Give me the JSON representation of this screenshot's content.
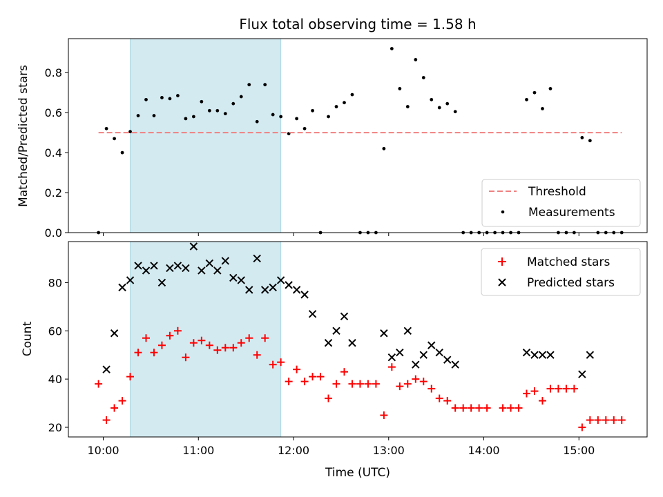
{
  "chart_data": {
    "type": "scatter",
    "title": "Flux total observing time = 1.58 h",
    "x_unit": "Time (UTC)",
    "xlim": [
      "09:38",
      "15:43"
    ],
    "x_ticks": [
      "10:00",
      "11:00",
      "12:00",
      "13:00",
      "14:00",
      "15:00"
    ],
    "shaded_interval": [
      "10:17",
      "11:52"
    ],
    "shaded_color": "#d3eaf1",
    "panels": [
      {
        "ylabel": "Matched/Predicted stars",
        "ylim": [
          0,
          0.97
        ],
        "y_ticks": [
          "0.0",
          "0.2",
          "0.4",
          "0.6",
          "0.8"
        ],
        "legend_placement": "lower-right",
        "threshold": {
          "name": "Threshold",
          "value": 0.5,
          "x_range": [
            "09:57",
            "15:27"
          ],
          "color": "#f08080"
        },
        "series": [
          {
            "name": "Measurements",
            "marker": "dot",
            "color": "#000000",
            "points": [
              [
                "09:57",
                0
              ],
              [
                "10:02",
                0.52
              ],
              [
                "10:07",
                0.47
              ],
              [
                "10:12",
                0.4
              ],
              [
                "10:17",
                0.505
              ],
              [
                "10:22",
                0.585
              ],
              [
                "10:27",
                0.665
              ],
              [
                "10:32",
                0.585
              ],
              [
                "10:37",
                0.675
              ],
              [
                "10:42",
                0.67
              ],
              [
                "10:47",
                0.685
              ],
              [
                "10:52",
                0.57
              ],
              [
                "10:57",
                0.58
              ],
              [
                "11:02",
                0.655
              ],
              [
                "11:07",
                0.61
              ],
              [
                "11:12",
                0.61
              ],
              [
                "11:17",
                0.595
              ],
              [
                "11:22",
                0.645
              ],
              [
                "11:27",
                0.68
              ],
              [
                "11:32",
                0.74
              ],
              [
                "11:37",
                0.555
              ],
              [
                "11:42",
                0.74
              ],
              [
                "11:47",
                0.59
              ],
              [
                "11:52",
                0.58
              ],
              [
                "11:57",
                0.495
              ],
              [
                "12:02",
                0.57
              ],
              [
                "12:07",
                0.52
              ],
              [
                "12:12",
                0.61
              ],
              [
                "12:17",
                0
              ],
              [
                "12:22",
                0.58
              ],
              [
                "12:27",
                0.63
              ],
              [
                "12:32",
                0.65
              ],
              [
                "12:37",
                0.69
              ],
              [
                "12:42",
                0
              ],
              [
                "12:47",
                0
              ],
              [
                "12:52",
                0
              ],
              [
                "12:57",
                0.42
              ],
              [
                "13:02",
                0.92
              ],
              [
                "13:07",
                0.72
              ],
              [
                "13:12",
                0.63
              ],
              [
                "13:17",
                0.865
              ],
              [
                "13:22",
                0.775
              ],
              [
                "13:27",
                0.665
              ],
              [
                "13:32",
                0.625
              ],
              [
                "13:37",
                0.645
              ],
              [
                "13:42",
                0.605
              ],
              [
                "13:47",
                0
              ],
              [
                "13:52",
                0
              ],
              [
                "13:57",
                0
              ],
              [
                "14:02",
                0
              ],
              [
                "14:07",
                0
              ],
              [
                "14:12",
                0
              ],
              [
                "14:17",
                0
              ],
              [
                "14:22",
                0
              ],
              [
                "14:27",
                0.665
              ],
              [
                "14:32",
                0.7
              ],
              [
                "14:37",
                0.62
              ],
              [
                "14:42",
                0.72
              ],
              [
                "14:47",
                0
              ],
              [
                "14:52",
                0
              ],
              [
                "14:57",
                0
              ],
              [
                "15:02",
                0.475
              ],
              [
                "15:07",
                0.46
              ],
              [
                "15:12",
                0
              ],
              [
                "15:17",
                0
              ],
              [
                "15:22",
                0
              ],
              [
                "15:27",
                0
              ]
            ]
          }
        ]
      },
      {
        "ylabel": "Count",
        "xlabel": "Time (UTC)",
        "ylim": [
          16,
          97
        ],
        "y_ticks": [
          "20",
          "40",
          "60",
          "80"
        ],
        "legend_placement": "top-right",
        "series": [
          {
            "name": "Matched stars",
            "marker": "plus",
            "color": "#ff0000",
            "points": [
              [
                "09:57",
                38
              ],
              [
                "10:02",
                23
              ],
              [
                "10:07",
                28
              ],
              [
                "10:12",
                31
              ],
              [
                "10:17",
                41
              ],
              [
                "10:22",
                51
              ],
              [
                "10:27",
                57
              ],
              [
                "10:32",
                51
              ],
              [
                "10:37",
                54
              ],
              [
                "10:42",
                58
              ],
              [
                "10:47",
                60
              ],
              [
                "10:52",
                49
              ],
              [
                "10:57",
                55
              ],
              [
                "11:02",
                56
              ],
              [
                "11:07",
                54
              ],
              [
                "11:12",
                52
              ],
              [
                "11:17",
                53
              ],
              [
                "11:22",
                53
              ],
              [
                "11:27",
                55
              ],
              [
                "11:32",
                57
              ],
              [
                "11:37",
                50
              ],
              [
                "11:42",
                57
              ],
              [
                "11:47",
                46
              ],
              [
                "11:52",
                47
              ],
              [
                "11:57",
                39
              ],
              [
                "12:02",
                44
              ],
              [
                "12:07",
                39
              ],
              [
                "12:12",
                41
              ],
              [
                "12:17",
                41
              ],
              [
                "12:22",
                32
              ],
              [
                "12:27",
                38
              ],
              [
                "12:32",
                43
              ],
              [
                "12:37",
                38
              ],
              [
                "12:42",
                38
              ],
              [
                "12:47",
                38
              ],
              [
                "12:52",
                38
              ],
              [
                "12:57",
                25
              ],
              [
                "13:02",
                45
              ],
              [
                "13:07",
                37
              ],
              [
                "13:12",
                38
              ],
              [
                "13:17",
                40
              ],
              [
                "13:22",
                39
              ],
              [
                "13:27",
                36
              ],
              [
                "13:32",
                32
              ],
              [
                "13:37",
                31
              ],
              [
                "13:42",
                28
              ],
              [
                "13:47",
                28
              ],
              [
                "13:52",
                28
              ],
              [
                "13:57",
                28
              ],
              [
                "14:02",
                28
              ],
              [
                "14:12",
                28
              ],
              [
                "14:17",
                28
              ],
              [
                "14:22",
                28
              ],
              [
                "14:27",
                34
              ],
              [
                "14:32",
                35
              ],
              [
                "14:37",
                31
              ],
              [
                "14:42",
                36
              ],
              [
                "14:47",
                36
              ],
              [
                "14:52",
                36
              ],
              [
                "14:57",
                36
              ],
              [
                "15:02",
                20
              ],
              [
                "15:07",
                23
              ],
              [
                "15:12",
                23
              ],
              [
                "15:17",
                23
              ],
              [
                "15:22",
                23
              ],
              [
                "15:27",
                23
              ]
            ]
          },
          {
            "name": "Predicted stars",
            "marker": "x",
            "color": "#000000",
            "points": [
              [
                "10:02",
                44
              ],
              [
                "10:07",
                59
              ],
              [
                "10:12",
                78
              ],
              [
                "10:17",
                81
              ],
              [
                "10:22",
                87
              ],
              [
                "10:27",
                85
              ],
              [
                "10:32",
                87
              ],
              [
                "10:37",
                80
              ],
              [
                "10:42",
                86
              ],
              [
                "10:47",
                87
              ],
              [
                "10:52",
                86
              ],
              [
                "10:57",
                95
              ],
              [
                "11:02",
                85
              ],
              [
                "11:07",
                88
              ],
              [
                "11:12",
                85
              ],
              [
                "11:17",
                89
              ],
              [
                "11:22",
                82
              ],
              [
                "11:27",
                81
              ],
              [
                "11:32",
                77
              ],
              [
                "11:37",
                90
              ],
              [
                "11:42",
                77
              ],
              [
                "11:47",
                78
              ],
              [
                "11:52",
                81
              ],
              [
                "11:57",
                79
              ],
              [
                "12:02",
                77
              ],
              [
                "12:07",
                75
              ],
              [
                "12:12",
                67
              ],
              [
                "12:22",
                55
              ],
              [
                "12:27",
                60
              ],
              [
                "12:32",
                66
              ],
              [
                "12:37",
                55
              ],
              [
                "12:57",
                59
              ],
              [
                "13:02",
                49
              ],
              [
                "13:07",
                51
              ],
              [
                "13:12",
                60
              ],
              [
                "13:17",
                46
              ],
              [
                "13:22",
                50
              ],
              [
                "13:27",
                54
              ],
              [
                "13:32",
                51
              ],
              [
                "13:37",
                48
              ],
              [
                "13:42",
                46
              ],
              [
                "14:27",
                51
              ],
              [
                "14:32",
                50
              ],
              [
                "14:37",
                50
              ],
              [
                "14:42",
                50
              ],
              [
                "15:02",
                42
              ],
              [
                "15:07",
                50
              ]
            ]
          }
        ]
      }
    ]
  }
}
